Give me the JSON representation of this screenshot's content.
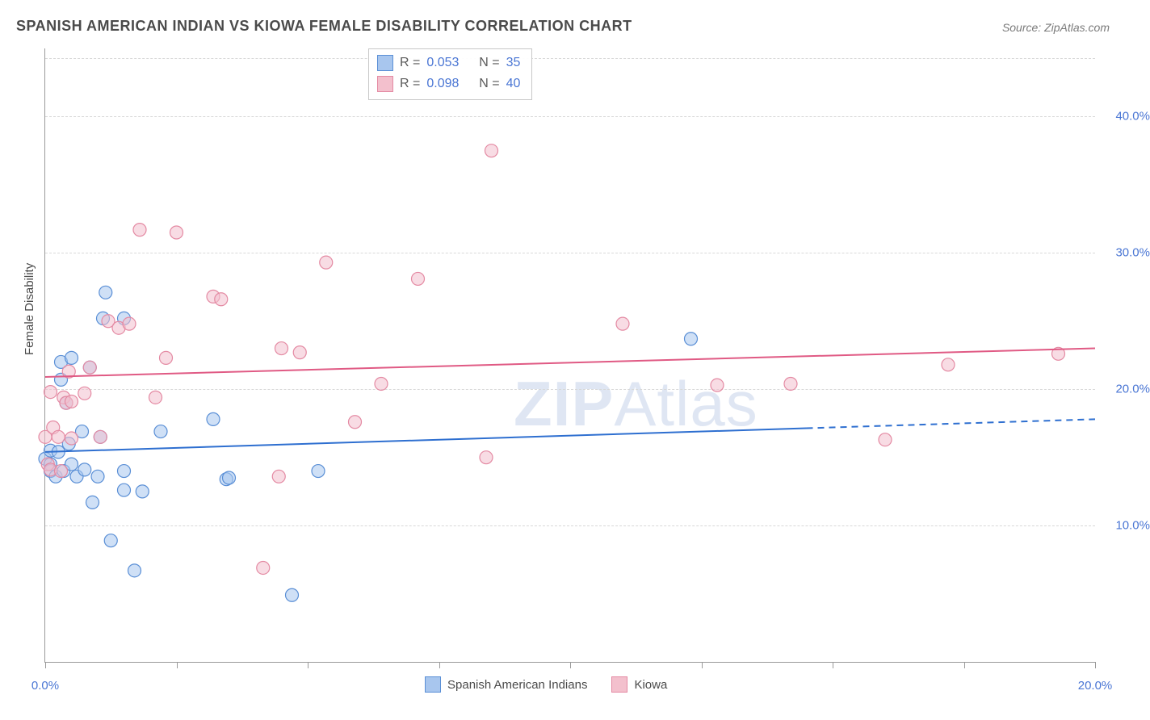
{
  "title": "SPANISH AMERICAN INDIAN VS KIOWA FEMALE DISABILITY CORRELATION CHART",
  "source": "Source: ZipAtlas.com",
  "watermark": "ZIPAtlas",
  "ylabel": "Female Disability",
  "chart": {
    "type": "scatter",
    "xlim": [
      0,
      20
    ],
    "ylim": [
      0,
      45
    ],
    "xtick_positions": [
      0,
      2.5,
      5,
      7.5,
      10,
      12.5,
      15,
      17.5,
      20
    ],
    "xtick_labels": {
      "0": "0.0%",
      "20": "20.0%"
    },
    "ytick_positions": [
      10,
      20,
      30,
      40
    ],
    "ytick_labels": {
      "10": "10.0%",
      "20": "20.0%",
      "30": "30.0%",
      "40": "40.0%"
    },
    "background_color": "#ffffff",
    "grid_color": "#d8d8d8",
    "axis_color": "#9a9a9a",
    "tick_label_color": "#4a76d4",
    "marker_radius": 8,
    "marker_opacity": 0.55,
    "series": [
      {
        "name": "Spanish American Indians",
        "color_fill": "#a8c6ee",
        "color_stroke": "#5a8fd6",
        "r": "0.053",
        "n": "35",
        "trend": {
          "y_at_x0": 15.4,
          "y_at_x20": 17.8,
          "solid_until_x": 14.5,
          "stroke": "#2e6fd0",
          "width": 2
        },
        "points": [
          [
            0.0,
            14.9
          ],
          [
            0.1,
            14.5
          ],
          [
            0.1,
            15.5
          ],
          [
            0.1,
            14.0
          ],
          [
            0.2,
            13.6
          ],
          [
            0.25,
            15.4
          ],
          [
            0.3,
            20.7
          ],
          [
            0.3,
            22.0
          ],
          [
            0.35,
            14.0
          ],
          [
            0.4,
            19.0
          ],
          [
            0.45,
            16.0
          ],
          [
            0.5,
            14.5
          ],
          [
            0.5,
            22.3
          ],
          [
            0.6,
            13.6
          ],
          [
            0.7,
            16.9
          ],
          [
            0.75,
            14.1
          ],
          [
            0.85,
            21.6
          ],
          [
            0.9,
            11.7
          ],
          [
            1.0,
            13.6
          ],
          [
            1.05,
            16.5
          ],
          [
            1.1,
            25.2
          ],
          [
            1.15,
            27.1
          ],
          [
            1.25,
            8.9
          ],
          [
            1.5,
            14.0
          ],
          [
            1.5,
            12.6
          ],
          [
            1.5,
            25.2
          ],
          [
            1.7,
            6.7
          ],
          [
            1.85,
            12.5
          ],
          [
            2.2,
            16.9
          ],
          [
            3.2,
            17.8
          ],
          [
            3.45,
            13.4
          ],
          [
            3.5,
            13.5
          ],
          [
            4.7,
            4.9
          ],
          [
            5.2,
            14.0
          ],
          [
            12.3,
            23.7
          ]
        ]
      },
      {
        "name": "Kiowa",
        "color_fill": "#f3c0cd",
        "color_stroke": "#e48aa3",
        "r": "0.098",
        "n": "40",
        "trend": {
          "y_at_x0": 20.9,
          "y_at_x20": 23.0,
          "solid_until_x": 20,
          "stroke": "#e05a84",
          "width": 2
        },
        "points": [
          [
            0.0,
            16.5
          ],
          [
            0.05,
            14.5
          ],
          [
            0.1,
            19.8
          ],
          [
            0.1,
            14.1
          ],
          [
            0.15,
            17.2
          ],
          [
            0.25,
            16.5
          ],
          [
            0.3,
            14.0
          ],
          [
            0.35,
            19.4
          ],
          [
            0.4,
            19.0
          ],
          [
            0.45,
            21.3
          ],
          [
            0.5,
            19.1
          ],
          [
            0.5,
            16.4
          ],
          [
            0.75,
            19.7
          ],
          [
            0.85,
            21.6
          ],
          [
            1.05,
            16.5
          ],
          [
            1.2,
            25.0
          ],
          [
            1.4,
            24.5
          ],
          [
            1.6,
            24.8
          ],
          [
            1.8,
            31.7
          ],
          [
            2.1,
            19.4
          ],
          [
            2.3,
            22.3
          ],
          [
            2.5,
            31.5
          ],
          [
            3.2,
            26.8
          ],
          [
            3.35,
            26.6
          ],
          [
            4.15,
            6.9
          ],
          [
            4.45,
            13.6
          ],
          [
            4.5,
            23.0
          ],
          [
            4.85,
            22.7
          ],
          [
            5.35,
            29.3
          ],
          [
            5.9,
            17.6
          ],
          [
            6.4,
            20.4
          ],
          [
            7.1,
            28.1
          ],
          [
            8.4,
            15.0
          ],
          [
            8.5,
            37.5
          ],
          [
            11.0,
            24.8
          ],
          [
            12.8,
            20.3
          ],
          [
            14.2,
            20.4
          ],
          [
            16.0,
            16.3
          ],
          [
            17.2,
            21.8
          ],
          [
            19.3,
            22.6
          ]
        ]
      }
    ]
  },
  "bottom_legend": [
    {
      "label": "Spanish American Indians",
      "fill": "#a8c6ee",
      "stroke": "#5a8fd6"
    },
    {
      "label": "Kiowa",
      "fill": "#f3c0cd",
      "stroke": "#e48aa3"
    }
  ]
}
